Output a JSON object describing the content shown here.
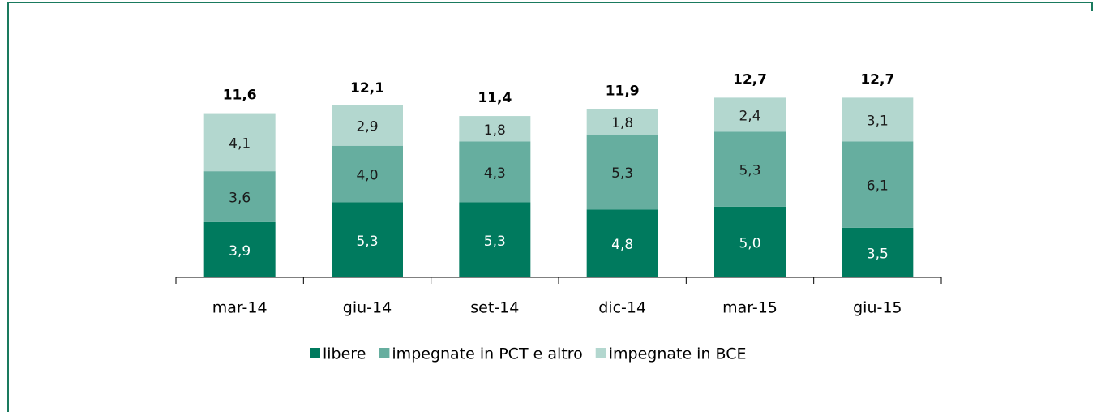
{
  "chart_data": {
    "type": "stacked_bar",
    "categories": [
      "mar-14",
      "giu-14",
      "set-14",
      "dic-14",
      "mar-15",
      "giu-15"
    ],
    "series": [
      {
        "name": "libere",
        "color": "#007a5e",
        "values": [
          3.9,
          5.3,
          5.3,
          4.8,
          5.0,
          3.5
        ],
        "value_labels": [
          "3,9",
          "5,3",
          "5,3",
          "4,8",
          "5,0",
          "3,5"
        ]
      },
      {
        "name": "impegnate in PCT e altro",
        "color": "#66ae9f",
        "values": [
          3.6,
          4.0,
          4.3,
          5.3,
          5.3,
          6.1
        ],
        "value_labels": [
          "3,6",
          "4,0",
          "4,3",
          "5,3",
          "5,3",
          "6,1"
        ]
      },
      {
        "name": "impegnate in BCE",
        "color": "#b3d7cf",
        "values": [
          4.1,
          2.9,
          1.8,
          1.8,
          2.4,
          3.1
        ],
        "value_labels": [
          "4,1",
          "2,9",
          "1,8",
          "1,8",
          "2,4",
          "3,1"
        ]
      }
    ],
    "totals": [
      11.6,
      12.1,
      11.4,
      11.9,
      12.7,
      12.7
    ],
    "total_labels": [
      "11,6",
      "12,1",
      "11,4",
      "11,9",
      "12,7",
      "12,7"
    ]
  }
}
